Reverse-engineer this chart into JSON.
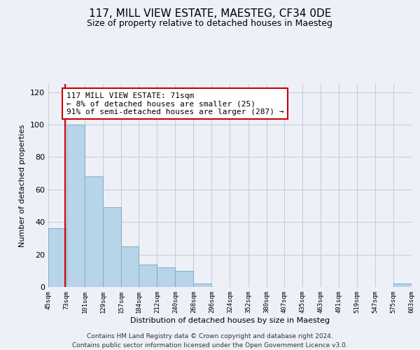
{
  "title": "117, MILL VIEW ESTATE, MAESTEG, CF34 0DE",
  "subtitle": "Size of property relative to detached houses in Maesteg",
  "xlabel": "Distribution of detached houses by size in Maesteg",
  "ylabel": "Number of detached properties",
  "bar_edges": [
    45,
    73,
    101,
    129,
    157,
    184,
    212,
    240,
    268,
    296,
    324,
    352,
    380,
    407,
    435,
    463,
    491,
    519,
    547,
    575,
    603
  ],
  "bar_heights": [
    36,
    100,
    68,
    49,
    25,
    14,
    12,
    10,
    2,
    0,
    0,
    0,
    0,
    0,
    0,
    0,
    0,
    0,
    0,
    2
  ],
  "bar_color": "#b8d4e8",
  "bar_edge_color": "#7aaec8",
  "property_line_x": 71,
  "property_line_color": "#cc0000",
  "annotation_line1": "117 MILL VIEW ESTATE: 71sqm",
  "annotation_line2": "← 8% of detached houses are smaller (25)",
  "annotation_line3": "91% of semi-detached houses are larger (287) →",
  "ylim": [
    0,
    125
  ],
  "yticks": [
    0,
    20,
    40,
    60,
    80,
    100,
    120
  ],
  "tick_labels": [
    "45sqm",
    "73sqm",
    "101sqm",
    "129sqm",
    "157sqm",
    "184sqm",
    "212sqm",
    "240sqm",
    "268sqm",
    "296sqm",
    "324sqm",
    "352sqm",
    "380sqm",
    "407sqm",
    "435sqm",
    "463sqm",
    "491sqm",
    "519sqm",
    "547sqm",
    "575sqm",
    "603sqm"
  ],
  "footer_line1": "Contains HM Land Registry data © Crown copyright and database right 2024.",
  "footer_line2": "Contains public sector information licensed under the Open Government Licence v3.0.",
  "background_color": "#eef0f8",
  "grid_color": "#c8cce0",
  "title_fontsize": 11,
  "subtitle_fontsize": 9,
  "ylabel_fontsize": 8,
  "xlabel_fontsize": 8
}
